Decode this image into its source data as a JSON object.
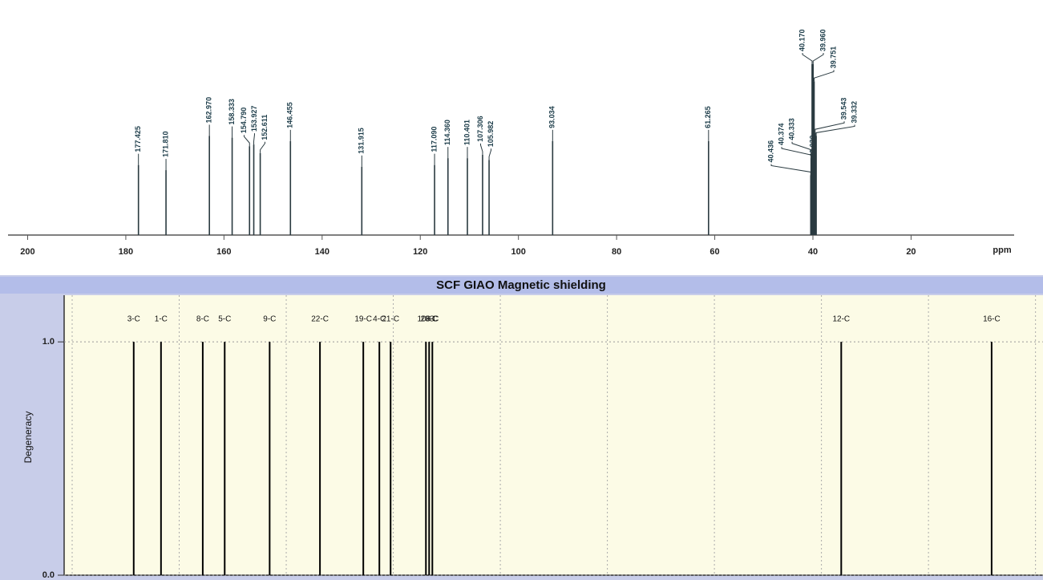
{
  "chart_data": [
    {
      "type": "spectrum",
      "x": [
        177.425,
        171.81,
        162.97,
        158.333,
        154.79,
        153.927,
        152.611,
        146.455,
        131.915,
        117.09,
        114.36,
        110.401,
        107.306,
        105.982,
        93.034,
        61.265,
        40.436,
        40.03,
        40.374,
        40.333,
        40.17,
        39.96,
        39.751,
        39.543,
        39.332
      ],
      "x_labels": [
        "177.425",
        "171.810",
        "162.970",
        "158.333",
        "154.790",
        "153.927",
        "152.611",
        "146.455",
        "131.915",
        "117.090",
        "114.360",
        "110.401",
        "107.306",
        "105.982",
        "93.034",
        "61.265",
        "40.436",
        "40.030",
        "40.374",
        "40.333",
        "40.170",
        "39.960",
        "39.751",
        "39.543",
        "39.332"
      ],
      "values": [
        41,
        38,
        58,
        57,
        52,
        53,
        48,
        55,
        40,
        41,
        45,
        45,
        47,
        44,
        55,
        55,
        35,
        38,
        45,
        48,
        100,
        100,
        90,
        60,
        58
      ],
      "color": "#2a3a40",
      "xlim": [
        204,
        -1
      ],
      "xticks": [
        200,
        180,
        160,
        140,
        120,
        100,
        80,
        60,
        40,
        20
      ],
      "x_label": "ppm"
    },
    {
      "type": "stick",
      "title": "SCF GIAO Magnetic shielding",
      "y_label": "Degeneracy",
      "labels": [
        "3-C",
        "1-C",
        "8-C",
        "5-C",
        "9-C",
        "22-C",
        "19-C",
        "4-C",
        "21-C",
        "10-C",
        "20-C",
        "6-C",
        "12-C",
        "16-C"
      ],
      "x": [
        11.5,
        16.6,
        24.4,
        28.5,
        36.9,
        46.3,
        54.4,
        57.4,
        59.5,
        66.1,
        66.7,
        67.3,
        143.7,
        171.8
      ],
      "values": [
        1,
        1,
        1,
        1,
        1,
        1,
        1,
        1,
        1,
        1,
        1,
        1,
        1,
        1
      ],
      "color": "#000000",
      "xlim": [
        -1.5,
        181.4
      ],
      "xticks": [
        0,
        20,
        40,
        60,
        80,
        100,
        120,
        140,
        160,
        180
      ],
      "ylim": [
        0,
        1.2
      ],
      "yticks": [
        {
          "value": 0,
          "label": "0.0"
        },
        {
          "value": 1,
          "label": "1.0"
        }
      ],
      "grid": true
    }
  ]
}
